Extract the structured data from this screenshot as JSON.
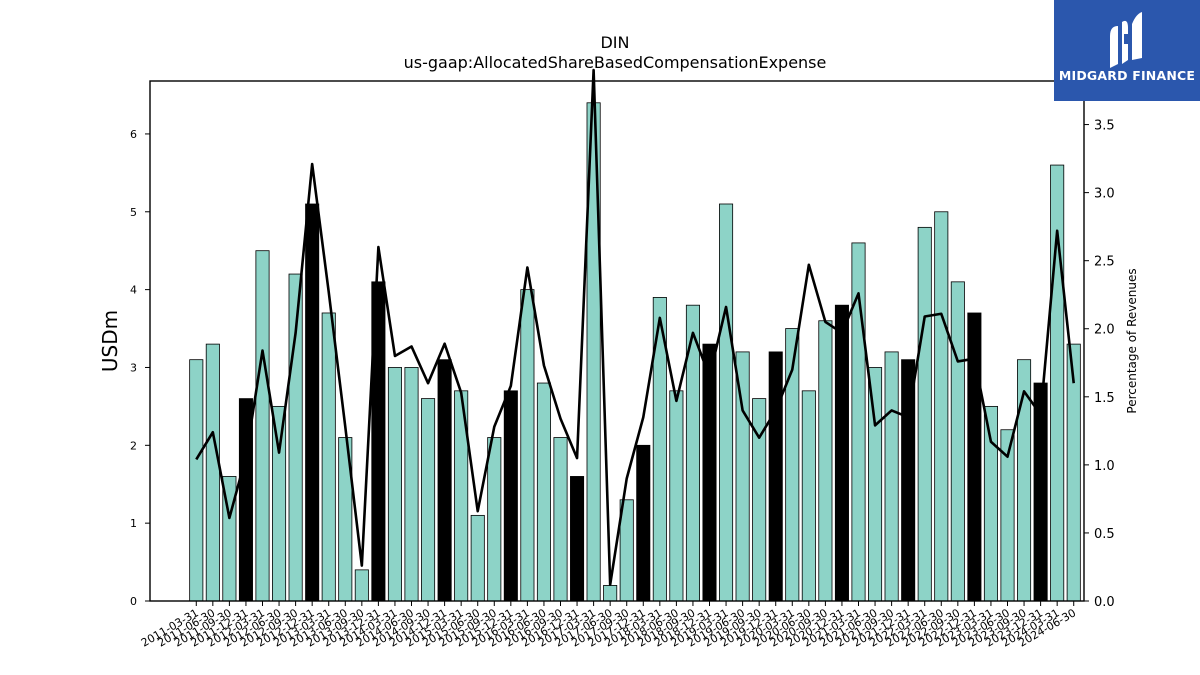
{
  "logo": {
    "text": "MIDGARD FINANCE",
    "icon": "midgard-logo-icon",
    "bg": "#2b57ad"
  },
  "chart_data": {
    "type": "bar",
    "title": "DIN",
    "subtitle": "us-gaap:AllocatedShareBasedCompensationExpense",
    "ylabel": "USDm",
    "y2label": "Percentage of Revenues",
    "ylim": [
      0,
      6.68
    ],
    "y2lim": [
      0,
      3.82
    ],
    "yticks": [
      0,
      1,
      2,
      3,
      4,
      5,
      6
    ],
    "y2ticks": [
      0.0,
      0.5,
      1.0,
      1.5,
      2.0,
      2.5,
      3.0,
      3.5
    ],
    "grid": false,
    "colors": {
      "quarter_bar": "#8dd3c7",
      "year_bar": "#000000",
      "line": "#000000"
    },
    "categories": [
      "2011-03-31",
      "2011-06-30",
      "2011-09-30",
      "2011-12-31",
      "2012-03-31",
      "2012-06-30",
      "2012-09-30",
      "2012-12-31",
      "2013-03-31",
      "2013-06-30",
      "2013-09-30",
      "2013-12-31",
      "2014-03-31",
      "2014-06-30",
      "2014-09-30",
      "2014-12-31",
      "2015-03-31",
      "2015-06-30",
      "2015-09-30",
      "2015-12-31",
      "2016-03-31",
      "2016-06-30",
      "2016-09-30",
      "2016-12-31",
      "2017-03-31",
      "2017-06-30",
      "2017-09-30",
      "2017-12-31",
      "2018-03-31",
      "2018-06-30",
      "2018-09-30",
      "2018-12-31",
      "2019-03-31",
      "2019-06-30",
      "2019-09-30",
      "2019-12-31",
      "2020-03-31",
      "2020-06-30",
      "2020-09-30",
      "2020-12-31",
      "2021-03-31",
      "2021-06-30",
      "2021-09-30",
      "2021-12-31",
      "2022-03-31",
      "2022-06-30",
      "2022-09-30",
      "2022-12-31",
      "2023-03-31",
      "2023-06-30",
      "2023-09-30",
      "2023-12-31",
      "2024-03-31",
      "2024-06-30"
    ],
    "series": [
      {
        "type": "bar",
        "values": [
          3.1,
          3.3,
          1.6,
          2.6,
          4.5,
          2.5,
          4.2,
          5.1,
          3.7,
          2.1,
          0.4,
          4.1,
          3.0,
          3.0,
          2.6,
          3.1,
          2.7,
          1.1,
          2.1,
          2.7,
          4.0,
          2.8,
          2.1,
          1.6,
          6.4,
          0.2,
          1.3,
          2.0,
          3.9,
          2.7,
          3.8,
          3.3,
          5.1,
          3.2,
          2.6,
          3.2,
          3.5,
          2.7,
          3.6,
          3.8,
          4.6,
          3.0,
          3.2,
          3.1,
          4.8,
          5.0,
          4.1,
          3.7,
          2.5,
          2.2,
          3.1,
          2.8,
          5.6,
          3.3
        ],
        "highlight": [
          false,
          false,
          false,
          true,
          false,
          false,
          false,
          true,
          false,
          false,
          false,
          true,
          false,
          false,
          false,
          true,
          false,
          false,
          false,
          true,
          false,
          false,
          false,
          true,
          false,
          false,
          false,
          true,
          false,
          false,
          false,
          true,
          false,
          false,
          false,
          true,
          false,
          false,
          false,
          true,
          false,
          false,
          false,
          true,
          false,
          false,
          false,
          true,
          false,
          false,
          false,
          true,
          false,
          false
        ]
      },
      {
        "type": "line",
        "axis": "right",
        "values": [
          1.04,
          1.24,
          0.61,
          1.06,
          1.84,
          1.09,
          1.97,
          3.21,
          2.27,
          1.28,
          0.26,
          2.6,
          1.8,
          1.87,
          1.6,
          1.89,
          1.53,
          0.66,
          1.28,
          1.58,
          2.45,
          1.73,
          1.34,
          1.05,
          3.9,
          0.12,
          0.9,
          1.35,
          2.08,
          1.47,
          1.97,
          1.65,
          2.16,
          1.4,
          1.2,
          1.4,
          1.7,
          2.47,
          2.05,
          1.97,
          2.26,
          1.29,
          1.4,
          1.35,
          2.09,
          2.11,
          1.76,
          1.78,
          1.17,
          1.06,
          1.54,
          1.37,
          2.72,
          1.6
        ]
      }
    ]
  }
}
